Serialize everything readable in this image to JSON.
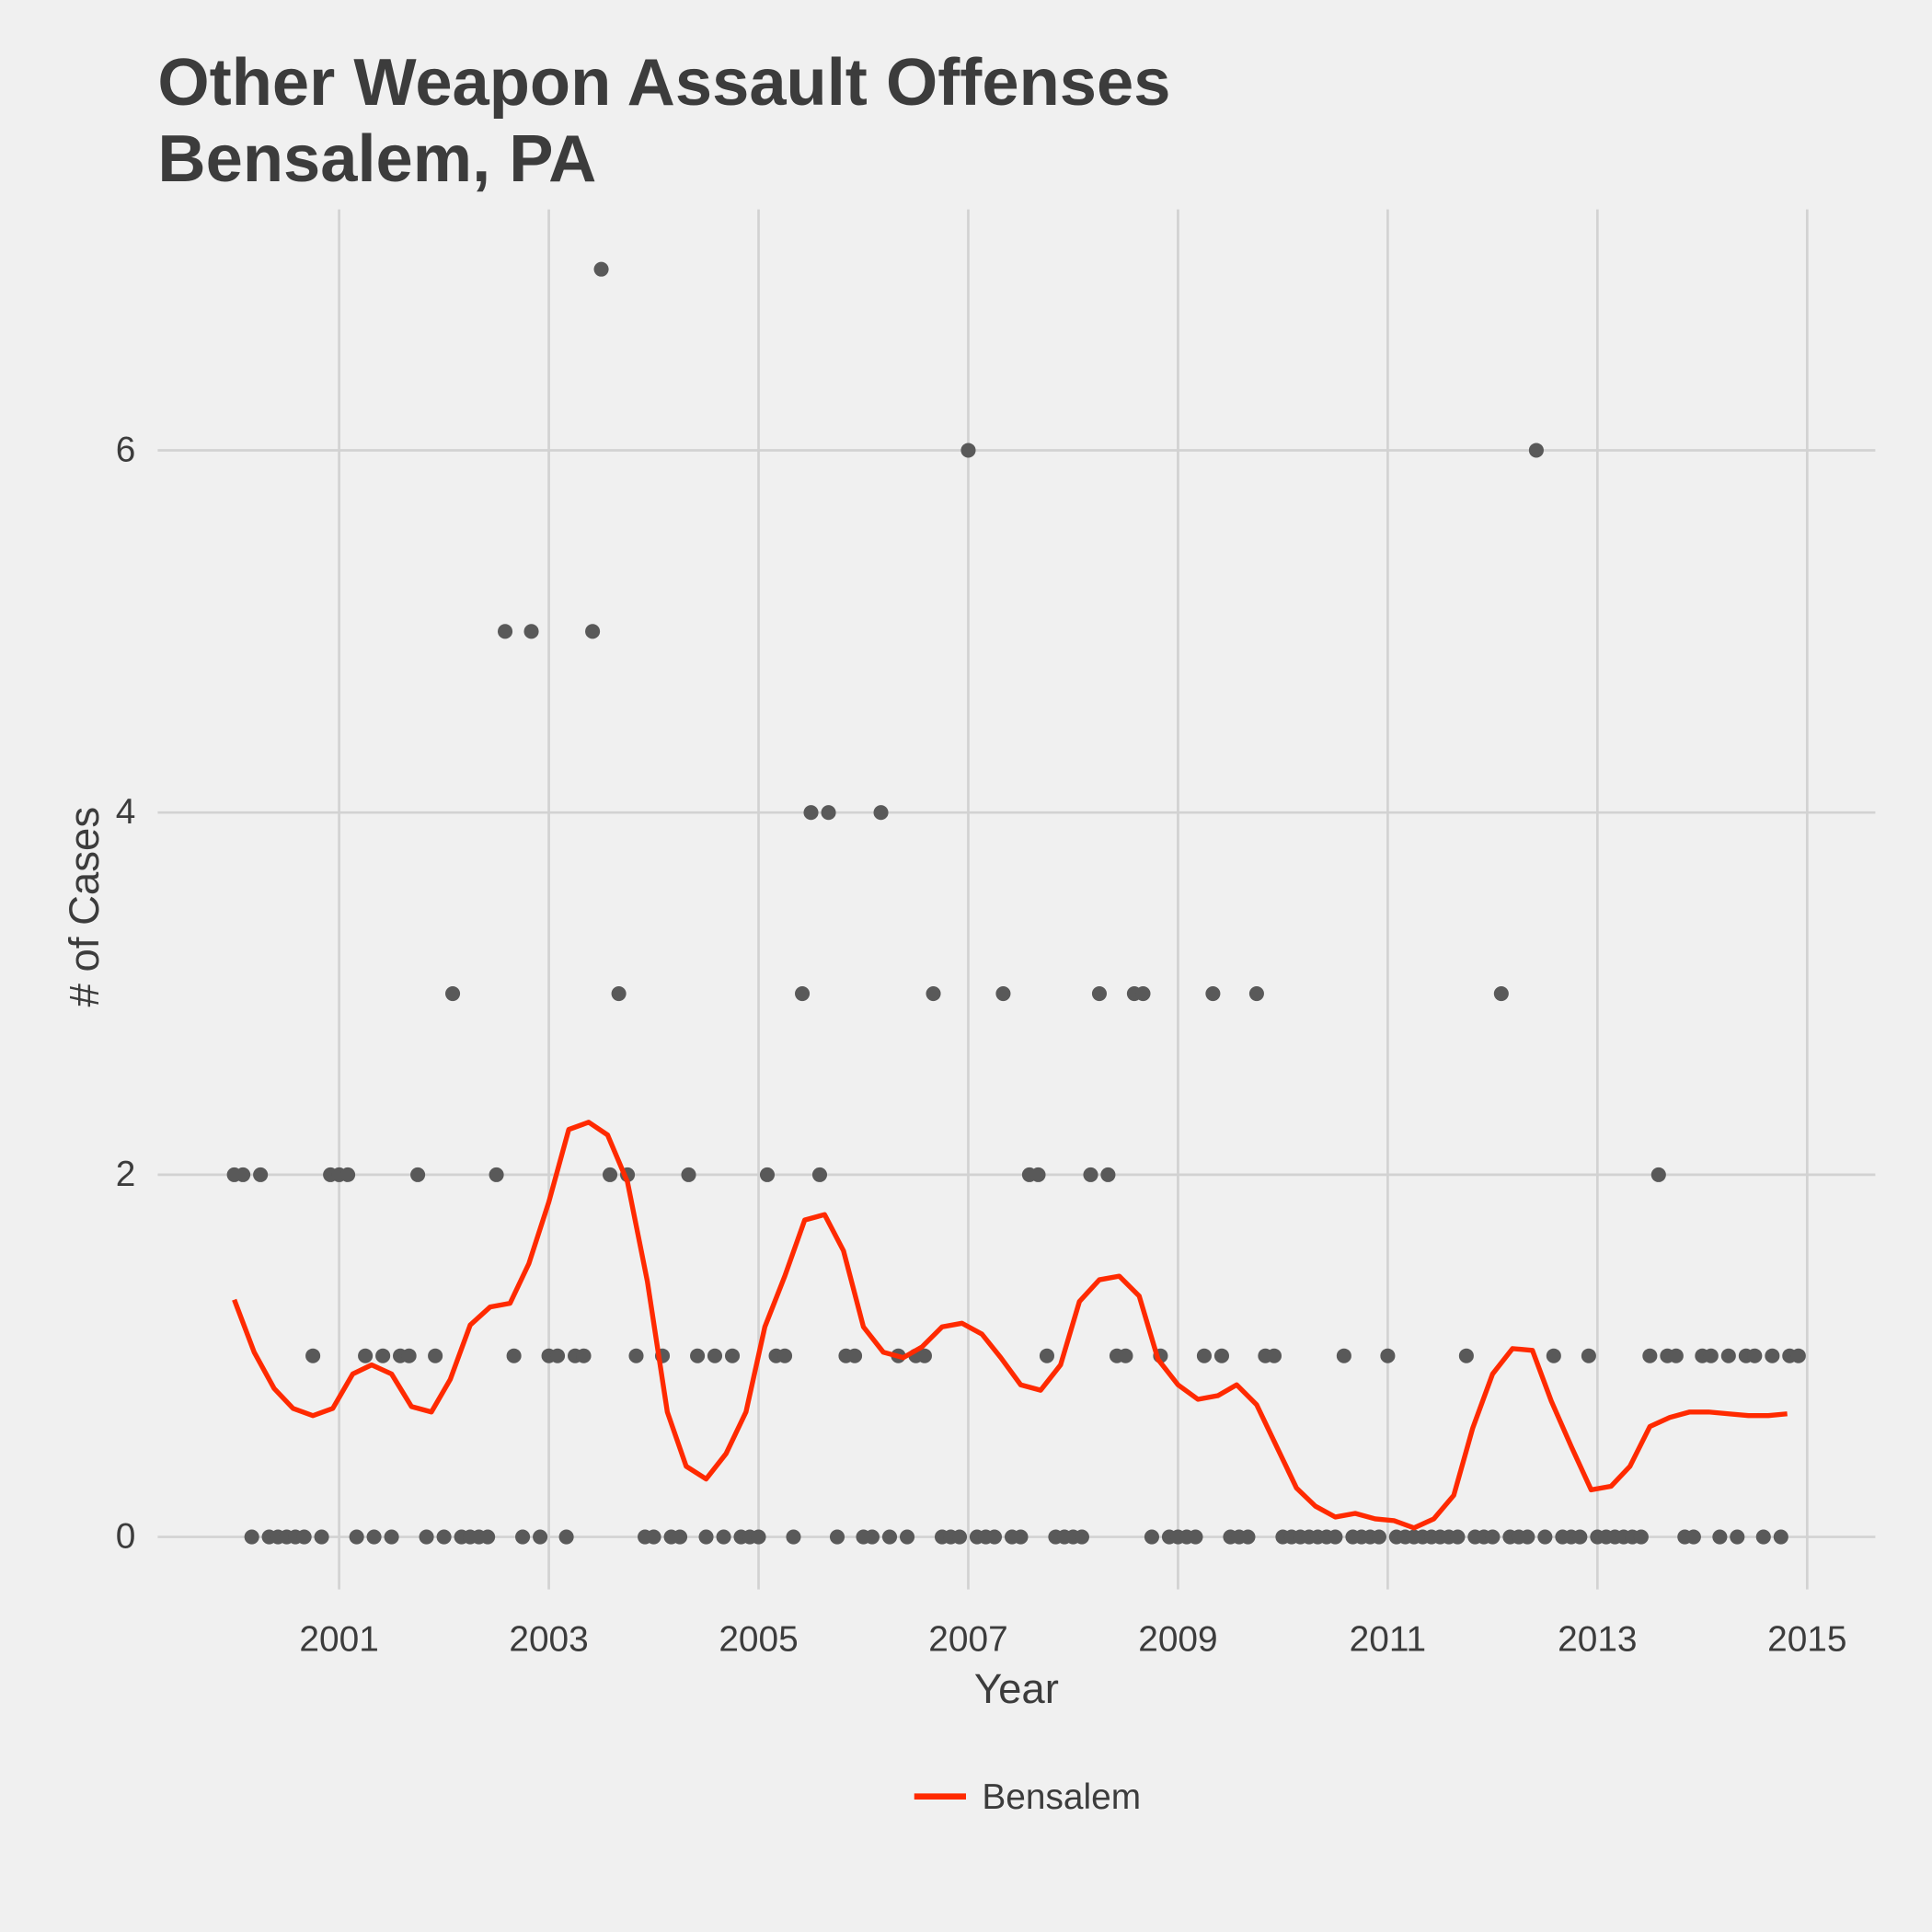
{
  "chart_data": {
    "type": "scatter",
    "title": [
      "Other Weapon Assault Offenses",
      "Bensalem, PA"
    ],
    "x_label": "Year",
    "y_label": "# of Cases",
    "xlim": [
      1999.27,
      2015.65
    ],
    "ylim": [
      -0.29,
      7.33
    ],
    "xticks": [
      2001,
      2003,
      2005,
      2007,
      2009,
      2011,
      2013,
      2015
    ],
    "yticks": [
      0,
      2,
      4,
      6
    ],
    "grid": true,
    "legend": "bottom",
    "series": [
      {
        "type": "scatter",
        "color": "#595959",
        "x": [
          2000.0,
          2000.083,
          2000.167,
          2000.25,
          2000.333,
          2000.417,
          2000.5,
          2000.583,
          2000.667,
          2000.75,
          2000.833,
          2000.917,
          2001.0,
          2001.083,
          2001.167,
          2001.25,
          2001.333,
          2001.417,
          2001.5,
          2001.583,
          2001.667,
          2001.75,
          2001.833,
          2001.917,
          2002.0,
          2002.083,
          2002.167,
          2002.25,
          2002.333,
          2002.417,
          2002.5,
          2002.583,
          2002.667,
          2002.75,
          2002.833,
          2002.917,
          2003.0,
          2003.083,
          2003.167,
          2003.25,
          2003.333,
          2003.417,
          2003.5,
          2003.583,
          2003.667,
          2003.75,
          2003.833,
          2003.917,
          2004.0,
          2004.083,
          2004.167,
          2004.25,
          2004.333,
          2004.417,
          2004.5,
          2004.583,
          2004.667,
          2004.75,
          2004.833,
          2004.917,
          2005.0,
          2005.083,
          2005.167,
          2005.25,
          2005.333,
          2005.417,
          2005.5,
          2005.583,
          2005.667,
          2005.75,
          2005.833,
          2005.917,
          2006.0,
          2006.083,
          2006.167,
          2006.25,
          2006.333,
          2006.417,
          2006.5,
          2006.583,
          2006.667,
          2006.75,
          2006.833,
          2006.917,
          2007.0,
          2007.083,
          2007.167,
          2007.25,
          2007.333,
          2007.417,
          2007.5,
          2007.583,
          2007.667,
          2007.75,
          2007.833,
          2007.917,
          2008.0,
          2008.083,
          2008.167,
          2008.25,
          2008.333,
          2008.417,
          2008.5,
          2008.583,
          2008.667,
          2008.75,
          2008.833,
          2008.917,
          2009.0,
          2009.083,
          2009.167,
          2009.25,
          2009.333,
          2009.417,
          2009.5,
          2009.583,
          2009.667,
          2009.75,
          2009.833,
          2009.917,
          2010.0,
          2010.083,
          2010.167,
          2010.25,
          2010.333,
          2010.417,
          2010.5,
          2010.583,
          2010.667,
          2010.75,
          2010.833,
          2010.917,
          2011.0,
          2011.083,
          2011.167,
          2011.25,
          2011.333,
          2011.417,
          2011.5,
          2011.583,
          2011.667,
          2011.75,
          2011.833,
          2011.917,
          2012.0,
          2012.083,
          2012.167,
          2012.25,
          2012.333,
          2012.417,
          2012.5,
          2012.583,
          2012.667,
          2012.75,
          2012.833,
          2012.917,
          2013.0,
          2013.083,
          2013.167,
          2013.25,
          2013.333,
          2013.417,
          2013.5,
          2013.583,
          2013.667,
          2013.75,
          2013.833,
          2013.917,
          2014.0,
          2014.083,
          2014.167,
          2014.25,
          2014.333,
          2014.417,
          2014.5,
          2014.583,
          2014.667,
          2014.75,
          2014.833,
          2014.917
        ],
        "values": [
          2,
          2,
          0,
          2,
          0,
          0,
          0,
          0,
          0,
          1,
          0,
          2,
          2,
          2,
          0,
          1,
          0,
          1,
          0,
          1,
          1,
          2,
          0,
          1,
          0,
          3,
          0,
          0,
          0,
          0,
          2,
          5,
          1,
          0,
          5,
          0,
          1,
          1,
          0,
          1,
          1,
          5,
          7,
          2,
          3,
          2,
          1,
          0,
          0,
          1,
          0,
          0,
          2,
          1,
          0,
          1,
          0,
          1,
          0,
          0,
          0,
          2,
          1,
          1,
          0,
          3,
          4,
          2,
          4,
          0,
          1,
          1,
          0,
          0,
          4,
          0,
          1,
          0,
          1,
          1,
          3,
          0,
          0,
          0,
          6,
          0,
          0,
          0,
          3,
          0,
          0,
          2,
          2,
          1,
          0,
          0,
          0,
          0,
          2,
          3,
          2,
          1,
          1,
          3,
          3,
          0,
          1,
          0,
          0,
          0,
          0,
          1,
          3,
          1,
          0,
          0,
          0,
          3,
          1,
          1,
          0,
          0,
          0,
          0,
          0,
          0,
          0,
          1,
          0,
          0,
          0,
          0,
          1,
          0,
          0,
          0,
          0,
          0,
          0,
          0,
          0,
          1,
          0,
          0,
          0,
          3,
          0,
          0,
          0,
          6,
          0,
          1,
          0,
          0,
          0,
          1,
          0,
          0,
          0,
          0,
          0,
          0,
          1,
          2,
          1,
          1,
          0,
          0,
          1,
          1,
          0,
          1,
          0,
          1,
          1,
          0,
          1,
          0,
          1,
          1
        ]
      },
      {
        "type": "line",
        "name": "Bensalem",
        "color": "#ff2a00",
        "x": [
          2000.0,
          2000.19,
          2000.38,
          2000.56,
          2000.75,
          2000.94,
          2001.13,
          2001.31,
          2001.5,
          2001.69,
          2001.88,
          2002.06,
          2002.25,
          2002.44,
          2002.63,
          2002.81,
          2003.0,
          2003.19,
          2003.38,
          2003.56,
          2003.75,
          2003.94,
          2004.13,
          2004.31,
          2004.5,
          2004.69,
          2004.88,
          2005.06,
          2005.25,
          2005.44,
          2005.63,
          2005.81,
          2006.0,
          2006.19,
          2006.38,
          2006.56,
          2006.75,
          2006.94,
          2007.13,
          2007.31,
          2007.5,
          2007.69,
          2007.88,
          2008.06,
          2008.25,
          2008.44,
          2008.63,
          2008.81,
          2009.0,
          2009.19,
          2009.38,
          2009.56,
          2009.75,
          2009.94,
          2010.13,
          2010.31,
          2010.5,
          2010.69,
          2010.88,
          2011.06,
          2011.25,
          2011.44,
          2011.63,
          2011.81,
          2012.0,
          2012.19,
          2012.38,
          2012.56,
          2012.75,
          2012.94,
          2013.13,
          2013.31,
          2013.5,
          2013.69,
          2013.88,
          2014.06,
          2014.25,
          2014.44,
          2014.63,
          2014.81
        ],
        "values": [
          1.31,
          1.02,
          0.82,
          0.71,
          0.67,
          0.71,
          0.9,
          0.95,
          0.9,
          0.72,
          0.69,
          0.87,
          1.17,
          1.27,
          1.29,
          1.51,
          1.85,
          2.25,
          2.29,
          2.22,
          1.96,
          1.41,
          0.69,
          0.39,
          0.32,
          0.46,
          0.69,
          1.16,
          1.44,
          1.75,
          1.78,
          1.58,
          1.16,
          1.02,
          0.99,
          1.05,
          1.16,
          1.18,
          1.12,
          0.99,
          0.84,
          0.81,
          0.95,
          1.3,
          1.42,
          1.44,
          1.33,
          0.98,
          0.84,
          0.76,
          0.78,
          0.84,
          0.73,
          0.5,
          0.27,
          0.17,
          0.11,
          0.13,
          0.1,
          0.09,
          0.05,
          0.1,
          0.23,
          0.6,
          0.9,
          1.04,
          1.03,
          0.75,
          0.5,
          0.26,
          0.28,
          0.39,
          0.61,
          0.66,
          0.69,
          0.69,
          0.68,
          0.67,
          0.67,
          0.68
        ]
      }
    ]
  }
}
